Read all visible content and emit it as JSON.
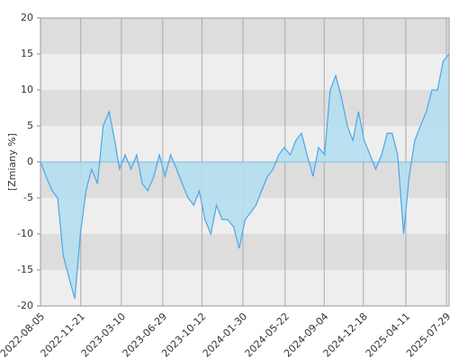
{
  "chart_data": {
    "type": "area",
    "ylabel": "[Zmiany %]",
    "ylim": [
      -20,
      20
    ],
    "yticks": [
      20,
      15,
      10,
      5,
      0,
      -5,
      -10,
      -15,
      -20
    ],
    "xticks": [
      "2022-08-05",
      "2022-11-21",
      "2023-03-10",
      "2023-06-29",
      "2023-10-12",
      "2024-01-30",
      "2024-05-22",
      "2024-09-04",
      "2024-12-18",
      "2025-04-11",
      "2025-07-29"
    ],
    "grid": true,
    "color": "#4da6e8",
    "fill": "#b5def0",
    "x": [
      "2022-08-05",
      "2022-08-20",
      "2022-09-05",
      "2022-09-20",
      "2022-10-05",
      "2022-10-20",
      "2022-11-05",
      "2022-11-20",
      "2022-12-05",
      "2022-12-20",
      "2023-01-05",
      "2023-01-20",
      "2023-02-05",
      "2023-02-20",
      "2023-03-05",
      "2023-03-20",
      "2023-04-05",
      "2023-04-20",
      "2023-05-05",
      "2023-05-20",
      "2023-06-05",
      "2023-06-20",
      "2023-07-05",
      "2023-07-20",
      "2023-08-05",
      "2023-08-20",
      "2023-09-05",
      "2023-09-20",
      "2023-10-05",
      "2023-10-20",
      "2023-11-05",
      "2023-11-20",
      "2023-12-05",
      "2023-12-20",
      "2024-01-05",
      "2024-01-20",
      "2024-02-05",
      "2024-02-20",
      "2024-03-05",
      "2024-03-20",
      "2024-04-05",
      "2024-04-20",
      "2024-05-05",
      "2024-05-20",
      "2024-06-05",
      "2024-06-20",
      "2024-07-05",
      "2024-07-20",
      "2024-08-05",
      "2024-08-20",
      "2024-09-05",
      "2024-09-20",
      "2024-10-05",
      "2024-10-20",
      "2024-11-05",
      "2024-11-20",
      "2024-12-05",
      "2024-12-20",
      "2025-01-05",
      "2025-01-20",
      "2025-02-05",
      "2025-02-20",
      "2025-03-05",
      "2025-03-20",
      "2025-04-05",
      "2025-04-20",
      "2025-05-05",
      "2025-05-20",
      "2025-06-05",
      "2025-06-20",
      "2025-07-05",
      "2025-07-20",
      "2025-08-05"
    ],
    "values": [
      0,
      -2,
      -4,
      -5,
      -13,
      -16,
      -19,
      -10,
      -4,
      -1,
      -3,
      5,
      7,
      3,
      -1,
      1,
      -1,
      1,
      -3,
      -4,
      -2,
      1,
      -2,
      1,
      -1,
      -3,
      -5,
      -6,
      -4,
      -8,
      -10,
      -6,
      -8,
      -8,
      -9,
      -12,
      -8,
      -7,
      -6,
      -4,
      -2,
      -1,
      1,
      2,
      1,
      3,
      4,
      1,
      -2,
      2,
      1,
      10,
      12,
      9,
      5,
      3,
      7,
      3,
      1,
      -1,
      1,
      4,
      4,
      1,
      -10,
      -2,
      3,
      5,
      7,
      10,
      10,
      14,
      15
    ]
  }
}
